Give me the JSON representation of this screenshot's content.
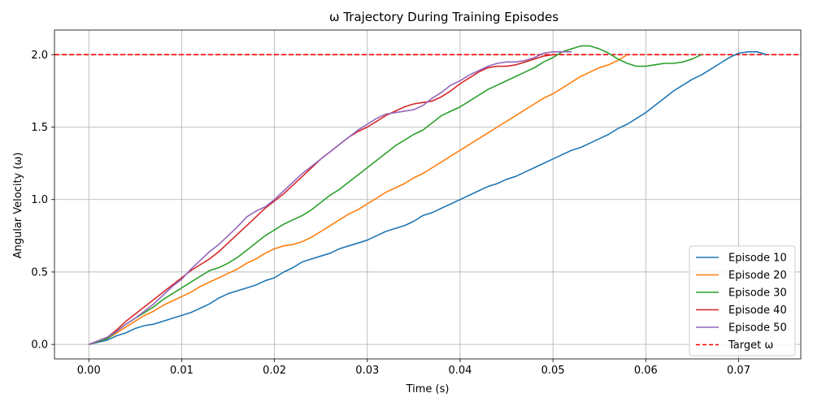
{
  "chart_data": {
    "type": "line",
    "title": "ω Trajectory During Training Episodes",
    "xlabel": "Time (s)",
    "ylabel": "Angular Velocity (ω)",
    "xlim": [
      -0.0037,
      0.0767
    ],
    "ylim": [
      -0.1,
      2.17
    ],
    "xticks": [
      0.0,
      0.01,
      0.02,
      0.03,
      0.04,
      0.05,
      0.06,
      0.07
    ],
    "xtick_labels": [
      "0.00",
      "0.01",
      "0.02",
      "0.03",
      "0.04",
      "0.05",
      "0.06",
      "0.07"
    ],
    "yticks": [
      0.0,
      0.5,
      1.0,
      1.5,
      2.0
    ],
    "ytick_labels": [
      "0.0",
      "0.5",
      "1.0",
      "1.5",
      "2.0"
    ],
    "grid": true,
    "legend_position": "lower-right",
    "series": [
      {
        "name": "Episode 10",
        "color": "#1f77b4",
        "x": [
          0.0,
          0.002,
          0.003,
          0.004,
          0.005,
          0.006,
          0.007,
          0.008,
          0.009,
          0.01,
          0.011,
          0.012,
          0.013,
          0.014,
          0.015,
          0.016,
          0.017,
          0.018,
          0.019,
          0.02,
          0.021,
          0.022,
          0.023,
          0.024,
          0.025,
          0.026,
          0.027,
          0.028,
          0.029,
          0.03,
          0.031,
          0.032,
          0.033,
          0.034,
          0.035,
          0.036,
          0.037,
          0.038,
          0.039,
          0.04,
          0.041,
          0.042,
          0.043,
          0.044,
          0.045,
          0.046,
          0.047,
          0.048,
          0.049,
          0.05,
          0.051,
          0.052,
          0.053,
          0.054,
          0.055,
          0.056,
          0.057,
          0.058,
          0.059,
          0.06,
          0.061,
          0.062,
          0.063,
          0.064,
          0.065,
          0.066,
          0.067,
          0.068,
          0.069,
          0.07,
          0.071,
          0.072,
          0.073
        ],
        "y": [
          0.0,
          0.03,
          0.06,
          0.08,
          0.11,
          0.13,
          0.14,
          0.16,
          0.18,
          0.2,
          0.22,
          0.25,
          0.28,
          0.32,
          0.35,
          0.37,
          0.39,
          0.41,
          0.44,
          0.46,
          0.5,
          0.53,
          0.57,
          0.59,
          0.61,
          0.63,
          0.66,
          0.68,
          0.7,
          0.72,
          0.75,
          0.78,
          0.8,
          0.82,
          0.85,
          0.89,
          0.91,
          0.94,
          0.97,
          1.0,
          1.03,
          1.06,
          1.09,
          1.11,
          1.14,
          1.16,
          1.19,
          1.22,
          1.25,
          1.28,
          1.31,
          1.34,
          1.36,
          1.39,
          1.42,
          1.45,
          1.49,
          1.52,
          1.56,
          1.6,
          1.65,
          1.7,
          1.75,
          1.79,
          1.83,
          1.86,
          1.9,
          1.94,
          1.98,
          2.01,
          2.02,
          2.02,
          2.0
        ]
      },
      {
        "name": "Episode 20",
        "color": "#ff7f0e",
        "x": [
          0.0,
          0.002,
          0.003,
          0.004,
          0.005,
          0.006,
          0.007,
          0.008,
          0.009,
          0.01,
          0.011,
          0.012,
          0.013,
          0.014,
          0.015,
          0.016,
          0.017,
          0.018,
          0.019,
          0.02,
          0.021,
          0.022,
          0.023,
          0.024,
          0.025,
          0.026,
          0.027,
          0.028,
          0.029,
          0.03,
          0.031,
          0.032,
          0.033,
          0.034,
          0.035,
          0.036,
          0.037,
          0.038,
          0.039,
          0.04,
          0.041,
          0.042,
          0.043,
          0.044,
          0.045,
          0.046,
          0.047,
          0.048,
          0.049,
          0.05,
          0.051,
          0.052,
          0.053,
          0.054,
          0.055,
          0.056,
          0.057,
          0.058
        ],
        "y": [
          0.0,
          0.04,
          0.08,
          0.12,
          0.16,
          0.2,
          0.23,
          0.27,
          0.3,
          0.33,
          0.36,
          0.4,
          0.43,
          0.46,
          0.49,
          0.52,
          0.56,
          0.59,
          0.63,
          0.66,
          0.68,
          0.69,
          0.71,
          0.74,
          0.78,
          0.82,
          0.86,
          0.9,
          0.93,
          0.97,
          1.01,
          1.05,
          1.08,
          1.11,
          1.15,
          1.18,
          1.22,
          1.26,
          1.3,
          1.34,
          1.38,
          1.42,
          1.46,
          1.5,
          1.54,
          1.58,
          1.62,
          1.66,
          1.7,
          1.73,
          1.77,
          1.81,
          1.85,
          1.88,
          1.91,
          1.93,
          1.96,
          2.0
        ]
      },
      {
        "name": "Episode 30",
        "color": "#2ca02c",
        "x": [
          0.0,
          0.002,
          0.003,
          0.004,
          0.005,
          0.006,
          0.007,
          0.008,
          0.009,
          0.01,
          0.011,
          0.012,
          0.013,
          0.014,
          0.015,
          0.016,
          0.017,
          0.018,
          0.019,
          0.02,
          0.021,
          0.022,
          0.023,
          0.024,
          0.025,
          0.026,
          0.027,
          0.028,
          0.029,
          0.03,
          0.031,
          0.032,
          0.033,
          0.034,
          0.035,
          0.036,
          0.037,
          0.038,
          0.039,
          0.04,
          0.041,
          0.042,
          0.043,
          0.044,
          0.045,
          0.046,
          0.047,
          0.048,
          0.049,
          0.05,
          0.051,
          0.052,
          0.053,
          0.054,
          0.055,
          0.056,
          0.057,
          0.058,
          0.059,
          0.06,
          0.061,
          0.062,
          0.063,
          0.064,
          0.065,
          0.066
        ],
        "y": [
          0.0,
          0.04,
          0.09,
          0.14,
          0.18,
          0.22,
          0.26,
          0.31,
          0.35,
          0.39,
          0.43,
          0.47,
          0.51,
          0.53,
          0.56,
          0.6,
          0.65,
          0.7,
          0.75,
          0.79,
          0.83,
          0.86,
          0.89,
          0.93,
          0.98,
          1.03,
          1.07,
          1.12,
          1.17,
          1.22,
          1.27,
          1.32,
          1.37,
          1.41,
          1.45,
          1.48,
          1.53,
          1.58,
          1.61,
          1.64,
          1.68,
          1.72,
          1.76,
          1.79,
          1.82,
          1.85,
          1.88,
          1.91,
          1.95,
          1.98,
          2.02,
          2.04,
          2.06,
          2.06,
          2.04,
          2.01,
          1.97,
          1.94,
          1.92,
          1.92,
          1.93,
          1.94,
          1.94,
          1.95,
          1.97,
          2.0
        ]
      },
      {
        "name": "Episode 40",
        "color": "#d62728",
        "x": [
          0.0,
          0.002,
          0.003,
          0.004,
          0.005,
          0.006,
          0.007,
          0.008,
          0.009,
          0.01,
          0.011,
          0.012,
          0.013,
          0.014,
          0.015,
          0.016,
          0.017,
          0.018,
          0.019,
          0.02,
          0.021,
          0.022,
          0.023,
          0.024,
          0.025,
          0.026,
          0.027,
          0.028,
          0.029,
          0.03,
          0.031,
          0.032,
          0.033,
          0.034,
          0.035,
          0.036,
          0.037,
          0.038,
          0.039,
          0.04,
          0.041,
          0.042,
          0.043,
          0.044,
          0.045,
          0.046,
          0.047,
          0.048,
          0.049,
          0.05
        ],
        "y": [
          0.0,
          0.05,
          0.1,
          0.16,
          0.21,
          0.26,
          0.31,
          0.36,
          0.41,
          0.46,
          0.51,
          0.55,
          0.59,
          0.64,
          0.7,
          0.76,
          0.82,
          0.88,
          0.94,
          0.99,
          1.04,
          1.1,
          1.16,
          1.22,
          1.28,
          1.33,
          1.38,
          1.43,
          1.47,
          1.5,
          1.54,
          1.58,
          1.61,
          1.64,
          1.66,
          1.67,
          1.68,
          1.71,
          1.75,
          1.8,
          1.84,
          1.88,
          1.91,
          1.92,
          1.92,
          1.93,
          1.95,
          1.97,
          1.99,
          2.0
        ]
      },
      {
        "name": "Episode 50",
        "color": "#9467bd",
        "x": [
          0.0,
          0.002,
          0.003,
          0.004,
          0.005,
          0.006,
          0.007,
          0.008,
          0.009,
          0.01,
          0.011,
          0.012,
          0.013,
          0.014,
          0.015,
          0.016,
          0.017,
          0.018,
          0.019,
          0.02,
          0.021,
          0.022,
          0.023,
          0.024,
          0.025,
          0.026,
          0.027,
          0.028,
          0.029,
          0.03,
          0.031,
          0.032,
          0.033,
          0.034,
          0.035,
          0.036,
          0.037,
          0.038,
          0.039,
          0.04,
          0.041,
          0.042,
          0.043,
          0.044,
          0.045,
          0.046,
          0.047,
          0.048,
          0.049,
          0.05,
          0.051,
          0.052
        ],
        "y": [
          0.0,
          0.05,
          0.09,
          0.14,
          0.18,
          0.23,
          0.28,
          0.34,
          0.4,
          0.45,
          0.52,
          0.58,
          0.64,
          0.69,
          0.75,
          0.81,
          0.88,
          0.92,
          0.95,
          1.0,
          1.06,
          1.12,
          1.18,
          1.23,
          1.28,
          1.33,
          1.38,
          1.43,
          1.48,
          1.52,
          1.56,
          1.59,
          1.6,
          1.61,
          1.62,
          1.65,
          1.7,
          1.74,
          1.79,
          1.82,
          1.86,
          1.89,
          1.92,
          1.94,
          1.95,
          1.95,
          1.96,
          1.98,
          2.01,
          2.02,
          2.02,
          2.02
        ]
      }
    ],
    "reference_lines": [
      {
        "name": "Target ω",
        "y": 2.0,
        "color": "#ff0000",
        "style": "dashed"
      }
    ]
  }
}
